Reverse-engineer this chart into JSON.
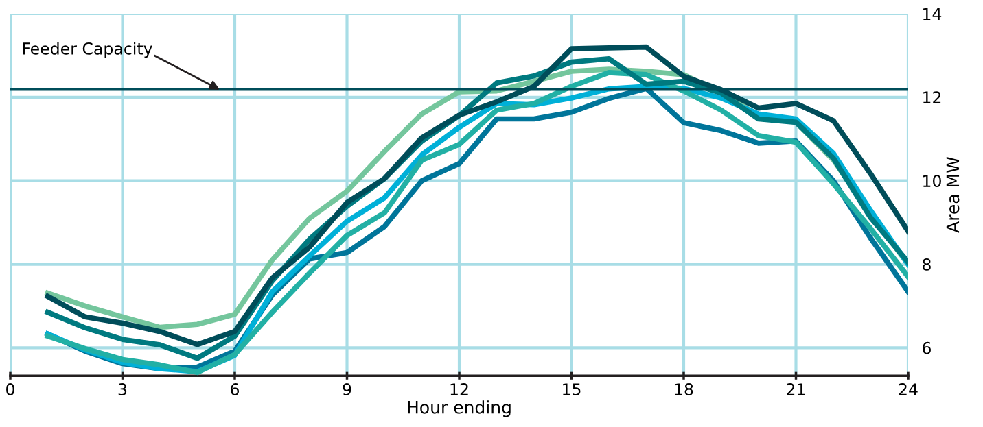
{
  "chart_data": {
    "type": "line",
    "xlabel": "Hour ending",
    "ylabel": "Area MW",
    "x": [
      1,
      2,
      3,
      4,
      5,
      6,
      7,
      8,
      9,
      10,
      11,
      12,
      13,
      14,
      15,
      16,
      17,
      18,
      19,
      20,
      21,
      22,
      23,
      24
    ],
    "xlim": [
      0,
      24
    ],
    "xticks": [
      0,
      3,
      6,
      9,
      12,
      15,
      18,
      21,
      24
    ],
    "ylim": [
      5.33,
      14
    ],
    "yticks": [
      6,
      8,
      10,
      12,
      14
    ],
    "grid": true,
    "marker": "none",
    "line_style": "solid",
    "series": [
      {
        "color": "#74c69d",
        "values": [
          7.31,
          7.0,
          6.74,
          6.49,
          6.56,
          6.8,
          8.1,
          9.1,
          9.75,
          10.7,
          11.6,
          12.13,
          12.15,
          12.38,
          12.62,
          12.67,
          12.62,
          12.54,
          12.1,
          11.57,
          11.4,
          10.5,
          9.2,
          8.0
        ]
      },
      {
        "color": "#00759a",
        "values": [
          6.33,
          5.92,
          5.62,
          5.5,
          5.54,
          5.92,
          7.26,
          8.13,
          8.28,
          8.9,
          10.0,
          10.41,
          11.48,
          11.48,
          11.64,
          11.97,
          12.21,
          11.39,
          11.2,
          10.9,
          10.95,
          10.0,
          8.62,
          7.34
        ]
      },
      {
        "color": "#00b0d8",
        "values": [
          6.33,
          5.95,
          5.65,
          5.5,
          5.43,
          5.82,
          7.34,
          8.2,
          9.03,
          9.59,
          10.62,
          11.28,
          11.85,
          11.82,
          11.98,
          12.2,
          12.26,
          12.21,
          11.98,
          11.6,
          11.48,
          10.66,
          9.28,
          8.0
        ]
      },
      {
        "color": "#22b0a5",
        "values": [
          6.28,
          5.98,
          5.72,
          5.59,
          5.41,
          5.84,
          6.85,
          7.79,
          8.69,
          9.23,
          10.49,
          10.87,
          11.69,
          11.85,
          12.26,
          12.59,
          12.54,
          12.15,
          11.69,
          11.08,
          10.92,
          9.93,
          8.85,
          7.7
        ]
      },
      {
        "color": "#007a80",
        "values": [
          6.85,
          6.48,
          6.2,
          6.07,
          5.75,
          6.28,
          7.6,
          8.6,
          9.39,
          10.05,
          10.95,
          11.56,
          12.34,
          12.51,
          12.84,
          12.92,
          12.31,
          12.38,
          12.1,
          11.48,
          11.4,
          10.54,
          9.11,
          8.05
        ]
      },
      {
        "color": "#004d5a",
        "values": [
          7.23,
          6.74,
          6.59,
          6.39,
          6.08,
          6.39,
          7.67,
          8.41,
          9.48,
          10.05,
          11.03,
          11.57,
          11.89,
          12.26,
          13.16,
          13.18,
          13.2,
          12.5,
          12.18,
          11.74,
          11.85,
          11.44,
          10.16,
          8.79
        ]
      }
    ],
    "ref_lines": [
      {
        "axis": "y",
        "value": 12.18,
        "color": "#004d5a",
        "line_style": "solid"
      }
    ],
    "annotations": [
      {
        "text": "Feeder Capacity",
        "x": 5.6,
        "y": 12.18
      }
    ]
  }
}
